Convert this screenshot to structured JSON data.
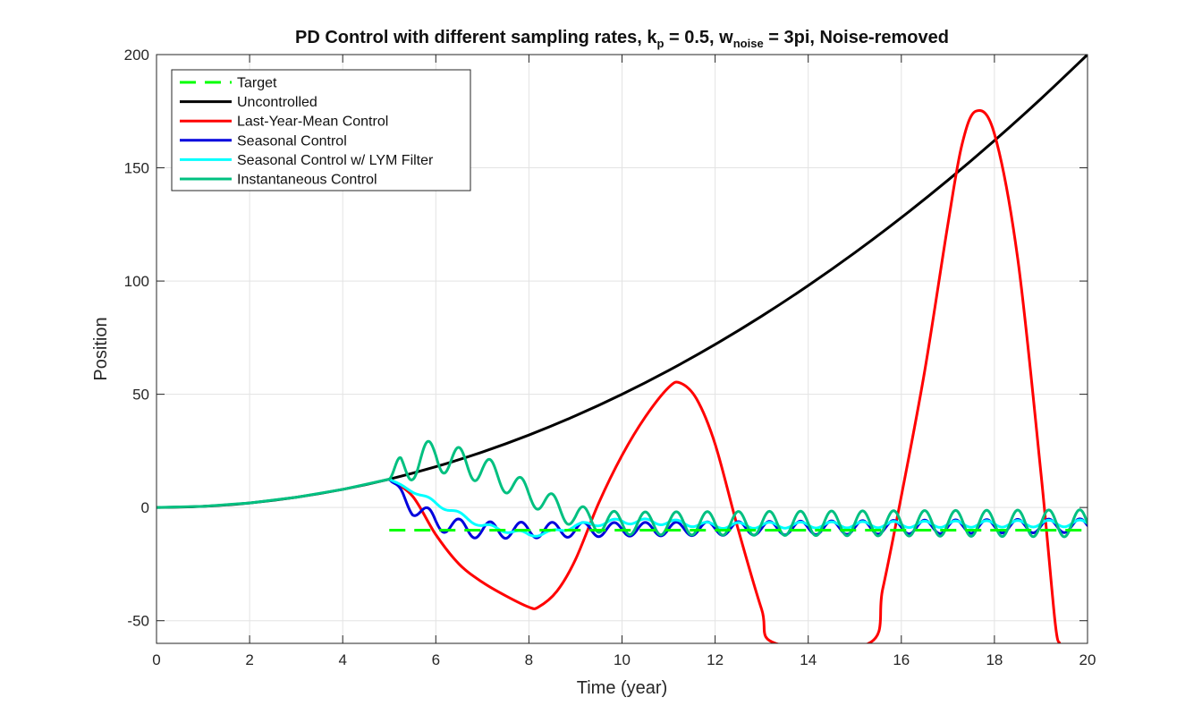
{
  "chart_data": {
    "type": "line",
    "title_parts": {
      "lead": "PD Control with different sampling rates, k",
      "kp_sub": "p",
      "mid": " = 0.5, w",
      "w_sub": "noise",
      "tail": " = 3pi, Noise-removed"
    },
    "xlabel": "Time (year)",
    "ylabel": "Position",
    "xlim": [
      0,
      20
    ],
    "ylim": [
      -60,
      200
    ],
    "xticks": [
      0,
      2,
      4,
      6,
      8,
      10,
      12,
      14,
      16,
      18,
      20
    ],
    "yticks": [
      -50,
      0,
      50,
      100,
      150,
      200
    ],
    "xtick_labels": [
      "0",
      "2",
      "4",
      "6",
      "8",
      "10",
      "12",
      "14",
      "16",
      "18",
      "20"
    ],
    "ytick_labels": [
      "-50",
      "0",
      "50",
      "100",
      "150",
      "200"
    ],
    "grid": true,
    "legend_position": "top-left",
    "series": [
      {
        "name": "Target",
        "color": "#00ff00",
        "style": "dashed",
        "x": [
          5,
          20
        ],
        "y": [
          -10,
          -10
        ]
      },
      {
        "name": "Uncontrolled",
        "color": "#000000",
        "style": "solid",
        "x": [
          0,
          1,
          2,
          3,
          4,
          5,
          6,
          7,
          8,
          9,
          10,
          11,
          12,
          13,
          14,
          15,
          16,
          17,
          18,
          19,
          20
        ],
        "y": [
          0,
          0.5,
          2,
          4.5,
          8,
          12.5,
          18,
          24.5,
          32,
          40.5,
          50,
          60.5,
          72,
          84.5,
          98,
          112.5,
          128,
          144.5,
          162,
          180.5,
          200
        ]
      },
      {
        "name": "Last-Year-Mean Control",
        "color": "#ff0000",
        "style": "solid",
        "x": [
          5,
          5.5,
          6,
          6.5,
          7,
          7.5,
          8,
          8.2,
          8.6,
          9,
          9.5,
          10,
          10.5,
          11,
          11.25,
          11.6,
          12,
          12.5,
          13,
          13.3,
          15.3,
          15.6,
          16,
          16.5,
          17,
          17.3,
          17.6,
          18,
          18.5,
          19,
          19.3,
          19.4
        ],
        "y": [
          12.5,
          5,
          -12,
          -25,
          -33,
          -39,
          -44,
          -44,
          -37,
          -23,
          2,
          23,
          40,
          53,
          55,
          48,
          28,
          -10,
          -45,
          -60,
          -60,
          -36,
          5,
          60,
          125,
          160,
          175,
          165,
          110,
          15,
          -50,
          -60
        ]
      },
      {
        "name": "Seasonal Control",
        "color": "#0000dd",
        "style": "solid",
        "oscillation": {
          "x_start": 5,
          "x_end": 20,
          "y_start": 12.5,
          "y_center": [
            [
              5,
              12.5
            ],
            [
              5.5,
              0
            ],
            [
              6,
              -6
            ],
            [
              6.5,
              -9
            ],
            [
              7,
              -10
            ],
            [
              8,
              -10
            ],
            [
              20,
              -8
            ]
          ],
          "amplitude": [
            [
              5,
              0
            ],
            [
              5.3,
              3
            ],
            [
              6,
              4
            ],
            [
              10,
              3
            ],
            [
              20,
              3
            ]
          ],
          "period_years": 0.6667
        }
      },
      {
        "name": "Seasonal Control w/ LYM Filter",
        "color": "#00ffff",
        "style": "solid",
        "oscillation": {
          "x_start": 5,
          "x_end": 20,
          "y_start": 12.5,
          "y_center": [
            [
              5,
              12.5
            ],
            [
              6,
              2
            ],
            [
              6.5,
              -3
            ],
            [
              7,
              -8
            ],
            [
              7.5,
              -10
            ],
            [
              8,
              -12
            ],
            [
              8.5,
              -11
            ],
            [
              9,
              -8
            ],
            [
              10,
              -6
            ],
            [
              11,
              -6.5
            ],
            [
              12,
              -8
            ],
            [
              20,
              -7
            ]
          ],
          "amplitude": [
            [
              5,
              0
            ],
            [
              6,
              1
            ],
            [
              9,
              1
            ],
            [
              10,
              1.2
            ],
            [
              20,
              1.5
            ]
          ],
          "period_years": 0.6667
        }
      },
      {
        "name": "Instantaneous Control",
        "color": "#00c080",
        "style": "solid",
        "x_before": [
          0,
          1,
          2,
          3,
          4,
          5
        ],
        "y_before": [
          0,
          0.5,
          2,
          4.5,
          8,
          12.5
        ],
        "oscillation": {
          "x_start": 5,
          "x_end": 20,
          "y_start": 12.5,
          "y_center": [
            [
              5,
              12.5
            ],
            [
              5.5,
              20
            ],
            [
              6,
              23
            ],
            [
              6.5,
              20
            ],
            [
              7,
              17
            ],
            [
              7.5,
              12
            ],
            [
              8,
              6
            ],
            [
              8.5,
              1
            ],
            [
              9,
              -4
            ],
            [
              9.5,
              -6
            ],
            [
              10,
              -7
            ],
            [
              20,
              -7
            ]
          ],
          "amplitude": [
            [
              5,
              0
            ],
            [
              5.25,
              8
            ],
            [
              6,
              7
            ],
            [
              7,
              6
            ],
            [
              8,
              5
            ],
            [
              9,
              5
            ],
            [
              10,
              5
            ],
            [
              20,
              6
            ]
          ],
          "period_years": 0.6667
        }
      }
    ]
  }
}
